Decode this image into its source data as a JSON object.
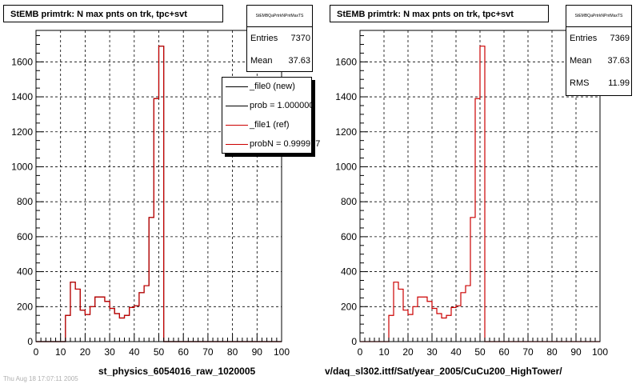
{
  "chart_data": [
    {
      "type": "histogram-step",
      "title": "StEMB primtrk: N max pnts on trk, tpc+svt",
      "xlabel": "st_physics_6054016_raw_1020005",
      "ylabel": "",
      "xlim": [
        0,
        100
      ],
      "ylim": [
        0,
        1780
      ],
      "xticks": [
        "0",
        "10",
        "20",
        "30",
        "40",
        "50",
        "60",
        "70",
        "80",
        "90",
        "100"
      ],
      "yticks": [
        "0",
        "200",
        "400",
        "600",
        "800",
        "1000",
        "1200",
        "1400",
        "1600"
      ],
      "grid": true,
      "stats": {
        "name": "StEMBQaPrtrkNPntMaxTS",
        "entries_label": "Entries",
        "entries": "7370",
        "mean_label": "Mean",
        "mean": "37.63"
      },
      "legend": {
        "placement": "top-right",
        "entries": [
          {
            "label": "_file0 (new)",
            "color": "#000000"
          },
          {
            "label": "prob = 1.000000",
            "color": "#000000"
          },
          {
            "label": "_file1 (ref)",
            "color": "#cc0000"
          },
          {
            "label": "probN = 0.999977",
            "color": "#cc0000"
          }
        ]
      },
      "bin_width": 2,
      "series": [
        {
          "name": "_file0 (new)",
          "color": "#000000",
          "bins_x": [
            12,
            14,
            16,
            18,
            20,
            22,
            24,
            26,
            28,
            30,
            32,
            34,
            36,
            38,
            40,
            42,
            44,
            46,
            48,
            50
          ],
          "values": [
            150,
            340,
            300,
            180,
            155,
            200,
            255,
            255,
            230,
            190,
            160,
            135,
            150,
            195,
            205,
            280,
            320,
            710,
            1390,
            1690
          ]
        },
        {
          "name": "_file1 (ref)",
          "color": "#cc0000",
          "bins_x": [
            12,
            14,
            16,
            18,
            20,
            22,
            24,
            26,
            28,
            30,
            32,
            34,
            36,
            38,
            40,
            42,
            44,
            46,
            48,
            50
          ],
          "values": [
            150,
            340,
            300,
            180,
            155,
            200,
            255,
            255,
            230,
            190,
            160,
            135,
            150,
            195,
            205,
            280,
            320,
            710,
            1390,
            1690
          ]
        }
      ],
      "bottom_left_text": "Thu Aug 18 17:07:11 2005"
    },
    {
      "type": "histogram-step",
      "title": "StEMB primtrk: N max pnts on trk, tpc+svt",
      "xlabel": "v/daq_sl302.ittf/Sat/year_2005/CuCu200_HighTower/",
      "ylabel": "",
      "xlim": [
        0,
        100
      ],
      "ylim": [
        0,
        1780
      ],
      "xticks": [
        "0",
        "10",
        "20",
        "30",
        "40",
        "50",
        "60",
        "70",
        "80",
        "90",
        "100"
      ],
      "yticks": [
        "0",
        "200",
        "400",
        "600",
        "800",
        "1000",
        "1200",
        "1400",
        "1600"
      ],
      "grid": true,
      "stats": {
        "name": "StEMBQaPrtrkNPntMaxTS",
        "entries_label": "Entries",
        "entries": "7369",
        "mean_label": "Mean",
        "mean": "37.63",
        "rms_label": "RMS",
        "rms": "11.99"
      },
      "bin_width": 2,
      "series": [
        {
          "name": "",
          "color": "#cc0000",
          "bins_x": [
            12,
            14,
            16,
            18,
            20,
            22,
            24,
            26,
            28,
            30,
            32,
            34,
            36,
            38,
            40,
            42,
            44,
            46,
            48,
            50
          ],
          "values": [
            150,
            340,
            300,
            180,
            155,
            200,
            255,
            255,
            230,
            190,
            160,
            135,
            150,
            195,
            205,
            280,
            320,
            710,
            1390,
            1690
          ]
        }
      ]
    }
  ]
}
